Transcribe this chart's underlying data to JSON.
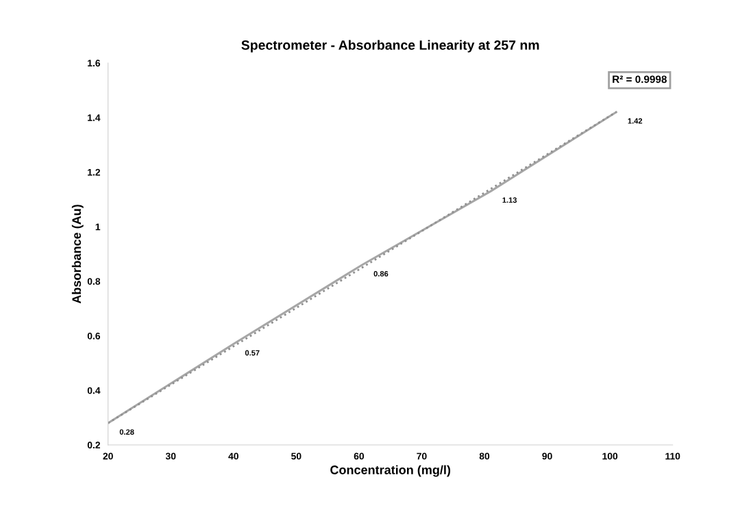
{
  "chart_data": {
    "type": "line",
    "title": "Spectrometer - Absorbance Linearity at 257 nm",
    "xlabel": "Concentration (mg/l)",
    "ylabel": "Absorbance (Au)",
    "x": [
      20,
      40,
      60.5,
      81,
      101
    ],
    "series": [
      {
        "color": "#a6a6a6",
        "values": [
          0.28,
          0.57,
          0.86,
          1.13,
          1.42
        ],
        "value_labels": [
          "0.28",
          "0.57",
          "0.86",
          "1.13",
          "1.42"
        ],
        "line_style": "solid"
      },
      {
        "type": "line",
        "x": [
          20,
          101
        ],
        "color": "#909090",
        "values": [
          0.28,
          1.42
        ],
        "line_style": "dotted"
      }
    ],
    "annotations": [
      "R² = 0.9998"
    ],
    "xlim": [
      20,
      110
    ],
    "xticks": [
      20,
      30,
      40,
      50,
      60,
      70,
      80,
      90,
      100,
      110
    ],
    "ylim": [
      0.2,
      1.6
    ],
    "yticks": [
      0.2,
      0.4,
      0.6,
      0.8,
      1,
      1.2,
      1.4,
      1.6
    ],
    "grid": false,
    "marker": "none"
  }
}
